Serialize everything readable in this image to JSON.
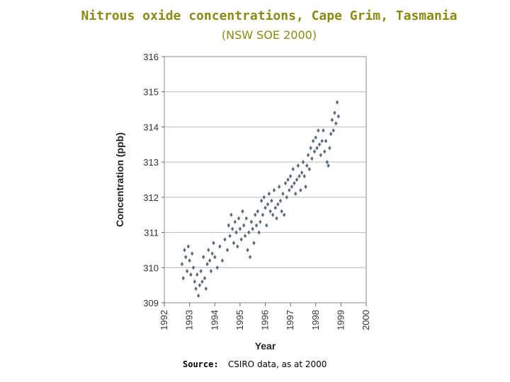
{
  "title": "Nitrous oxide concentrations, Cape Grim, Tasmania",
  "subtitle": "(NSW SOE 2000)",
  "source": {
    "label": "Source:",
    "text": "CSIRO data, as at 2000"
  },
  "chart_data": {
    "type": "scatter",
    "title": "Nitrous oxide concentrations, Cape Grim, Tasmania",
    "xlabel": "Year",
    "ylabel": "Concentration (ppb)",
    "xlim": [
      1992,
      2000
    ],
    "ylim": [
      309,
      316
    ],
    "xticks": [
      "1992",
      "1993",
      "1994",
      "1995",
      "1996",
      "1997",
      "1998",
      "1999",
      "2000"
    ],
    "yticks": [
      "309",
      "310",
      "311",
      "312",
      "313",
      "314",
      "315",
      "316"
    ],
    "grid": "horizontal",
    "marker_color": "#5c6b7a",
    "series": [
      {
        "points": [
          [
            1992.7,
            310.1
          ],
          [
            1992.75,
            309.7
          ],
          [
            1992.8,
            310.5
          ],
          [
            1992.85,
            310.3
          ],
          [
            1992.9,
            309.9
          ],
          [
            1992.95,
            310.6
          ],
          [
            1993.0,
            310.2
          ],
          [
            1993.05,
            309.8
          ],
          [
            1993.1,
            310.4
          ],
          [
            1993.15,
            310.0
          ],
          [
            1993.2,
            309.6
          ],
          [
            1993.25,
            309.4
          ],
          [
            1993.3,
            309.8
          ],
          [
            1993.35,
            309.2
          ],
          [
            1993.4,
            309.5
          ],
          [
            1993.45,
            309.9
          ],
          [
            1993.5,
            309.6
          ],
          [
            1993.55,
            310.3
          ],
          [
            1993.6,
            309.7
          ],
          [
            1993.65,
            309.4
          ],
          [
            1993.7,
            310.1
          ],
          [
            1993.75,
            310.5
          ],
          [
            1993.8,
            310.2
          ],
          [
            1993.85,
            309.9
          ],
          [
            1993.9,
            310.4
          ],
          [
            1993.95,
            310.7
          ],
          [
            1994.0,
            310.3
          ],
          [
            1994.1,
            310.0
          ],
          [
            1994.2,
            310.6
          ],
          [
            1994.3,
            310.2
          ],
          [
            1994.4,
            310.8
          ],
          [
            1994.5,
            310.5
          ],
          [
            1994.55,
            311.2
          ],
          [
            1994.6,
            310.9
          ],
          [
            1994.65,
            311.5
          ],
          [
            1994.7,
            311.1
          ],
          [
            1994.75,
            310.7
          ],
          [
            1994.8,
            311.3
          ],
          [
            1994.85,
            311.0
          ],
          [
            1994.9,
            310.6
          ],
          [
            1994.95,
            311.4
          ],
          [
            1995.0,
            311.1
          ],
          [
            1995.05,
            310.8
          ],
          [
            1995.1,
            311.6
          ],
          [
            1995.15,
            311.2
          ],
          [
            1995.2,
            310.9
          ],
          [
            1995.25,
            311.4
          ],
          [
            1995.3,
            310.5
          ],
          [
            1995.35,
            311.0
          ],
          [
            1995.4,
            310.3
          ],
          [
            1995.45,
            311.3
          ],
          [
            1995.5,
            311.1
          ],
          [
            1995.55,
            310.7
          ],
          [
            1995.6,
            311.5
          ],
          [
            1995.65,
            311.2
          ],
          [
            1995.7,
            311.6
          ],
          [
            1995.75,
            311.0
          ],
          [
            1995.8,
            311.3
          ],
          [
            1995.85,
            311.9
          ],
          [
            1995.9,
            311.5
          ],
          [
            1995.95,
            312.0
          ],
          [
            1996.0,
            311.7
          ],
          [
            1996.05,
            311.2
          ],
          [
            1996.1,
            311.8
          ],
          [
            1996.15,
            312.1
          ],
          [
            1996.2,
            311.6
          ],
          [
            1996.25,
            311.9
          ],
          [
            1996.3,
            311.5
          ],
          [
            1996.35,
            312.2
          ],
          [
            1996.4,
            311.7
          ],
          [
            1996.45,
            311.4
          ],
          [
            1996.5,
            311.8
          ],
          [
            1996.55,
            312.3
          ],
          [
            1996.6,
            311.9
          ],
          [
            1996.65,
            311.6
          ],
          [
            1996.7,
            312.1
          ],
          [
            1996.75,
            311.5
          ],
          [
            1996.8,
            312.4
          ],
          [
            1996.85,
            312.0
          ],
          [
            1996.9,
            312.5
          ],
          [
            1996.95,
            312.2
          ],
          [
            1997.0,
            312.6
          ],
          [
            1997.05,
            312.3
          ],
          [
            1997.1,
            312.8
          ],
          [
            1997.15,
            312.4
          ],
          [
            1997.2,
            312.1
          ],
          [
            1997.25,
            312.5
          ],
          [
            1997.3,
            312.9
          ],
          [
            1997.35,
            312.6
          ],
          [
            1997.4,
            312.2
          ],
          [
            1997.45,
            312.7
          ],
          [
            1997.5,
            313.0
          ],
          [
            1997.55,
            312.6
          ],
          [
            1997.6,
            312.3
          ],
          [
            1997.65,
            312.9
          ],
          [
            1997.7,
            313.2
          ],
          [
            1997.75,
            312.8
          ],
          [
            1997.8,
            313.4
          ],
          [
            1997.85,
            313.1
          ],
          [
            1997.9,
            313.6
          ],
          [
            1997.95,
            313.3
          ],
          [
            1998.0,
            313.7
          ],
          [
            1998.05,
            313.4
          ],
          [
            1998.1,
            313.9
          ],
          [
            1998.15,
            313.5
          ],
          [
            1998.2,
            313.2
          ],
          [
            1998.25,
            313.6
          ],
          [
            1998.3,
            313.9
          ],
          [
            1998.35,
            313.3
          ],
          [
            1998.4,
            313.6
          ],
          [
            1998.45,
            313.0
          ],
          [
            1998.5,
            312.9
          ],
          [
            1998.55,
            313.4
          ],
          [
            1998.6,
            313.8
          ],
          [
            1998.65,
            314.2
          ],
          [
            1998.7,
            313.9
          ],
          [
            1998.75,
            314.4
          ],
          [
            1998.8,
            314.1
          ],
          [
            1998.85,
            314.7
          ],
          [
            1998.9,
            314.3
          ]
        ]
      }
    ]
  }
}
